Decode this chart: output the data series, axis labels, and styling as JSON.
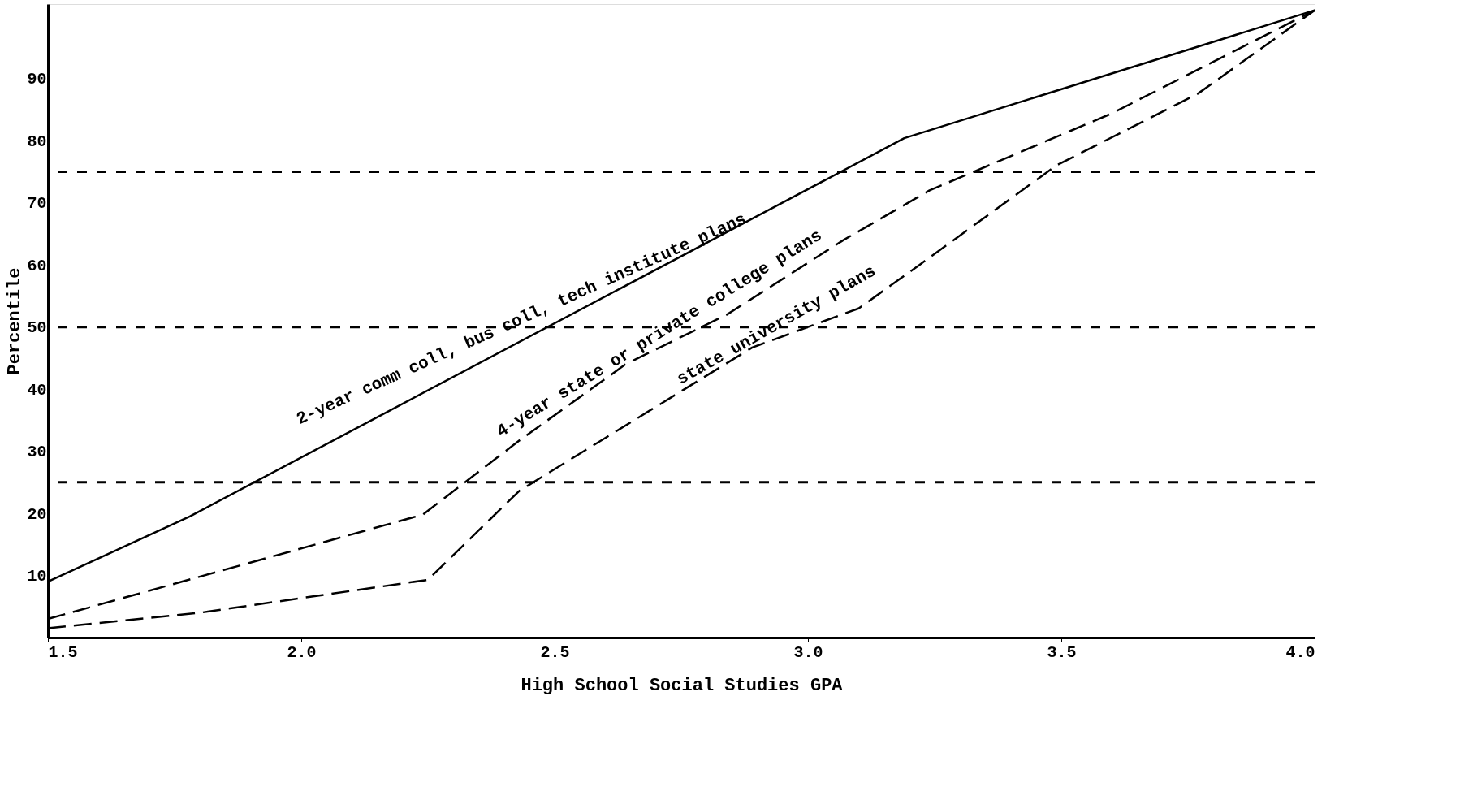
{
  "chart_data": {
    "type": "line",
    "xlabel": "High School Social Studies GPA",
    "ylabel": "Percentile",
    "xlim": [
      1.5,
      4.0
    ],
    "xticks": [
      {
        "value": 1.5,
        "label": "1.5"
      },
      {
        "value": 2.0,
        "label": "2.0"
      },
      {
        "value": 2.5,
        "label": "2.5"
      },
      {
        "value": 3.0,
        "label": "3.0"
      },
      {
        "value": 3.5,
        "label": "3.5"
      },
      {
        "value": 4.0,
        "label": "4.0"
      }
    ],
    "ylim": [
      0,
      102
    ],
    "yticks": [
      10,
      20,
      30,
      40,
      50,
      60,
      70,
      80,
      90
    ],
    "grid": false,
    "marker": "none",
    "series": [
      {
        "name": "2-year comm coll, bus coll, tech institute plans",
        "color": "#000000",
        "line_style": "solid",
        "x": [
          1.5,
          1.78,
          3.19,
          4.0
        ],
        "values": [
          9,
          19.5,
          80.4,
          101
        ]
      },
      {
        "name": "4-year state or private college plans",
        "color": "#000000",
        "line_style": "dashed",
        "x": [
          1.5,
          2.24,
          2.43,
          2.64,
          2.84,
          3.07,
          3.24,
          3.6,
          4.0
        ],
        "values": [
          3,
          19.8,
          31.7,
          44,
          52,
          64,
          72,
          84.4,
          101
        ]
      },
      {
        "name": "state university plans",
        "color": "#000000",
        "line_style": "dashed",
        "x": [
          1.5,
          1.8,
          2.25,
          2.43,
          2.89,
          3.1,
          3.22,
          3.49,
          3.77,
          4.0
        ],
        "values": [
          1.5,
          4,
          9.3,
          23.6,
          46.7,
          53,
          60,
          76,
          87.6,
          101
        ]
      }
    ],
    "ref_lines": [
      {
        "axis": "y",
        "value": 25,
        "line_style": "dashed"
      },
      {
        "axis": "y",
        "value": 50,
        "line_style": "dashed"
      },
      {
        "axis": "y",
        "value": 75,
        "line_style": "dashed"
      }
    ]
  }
}
